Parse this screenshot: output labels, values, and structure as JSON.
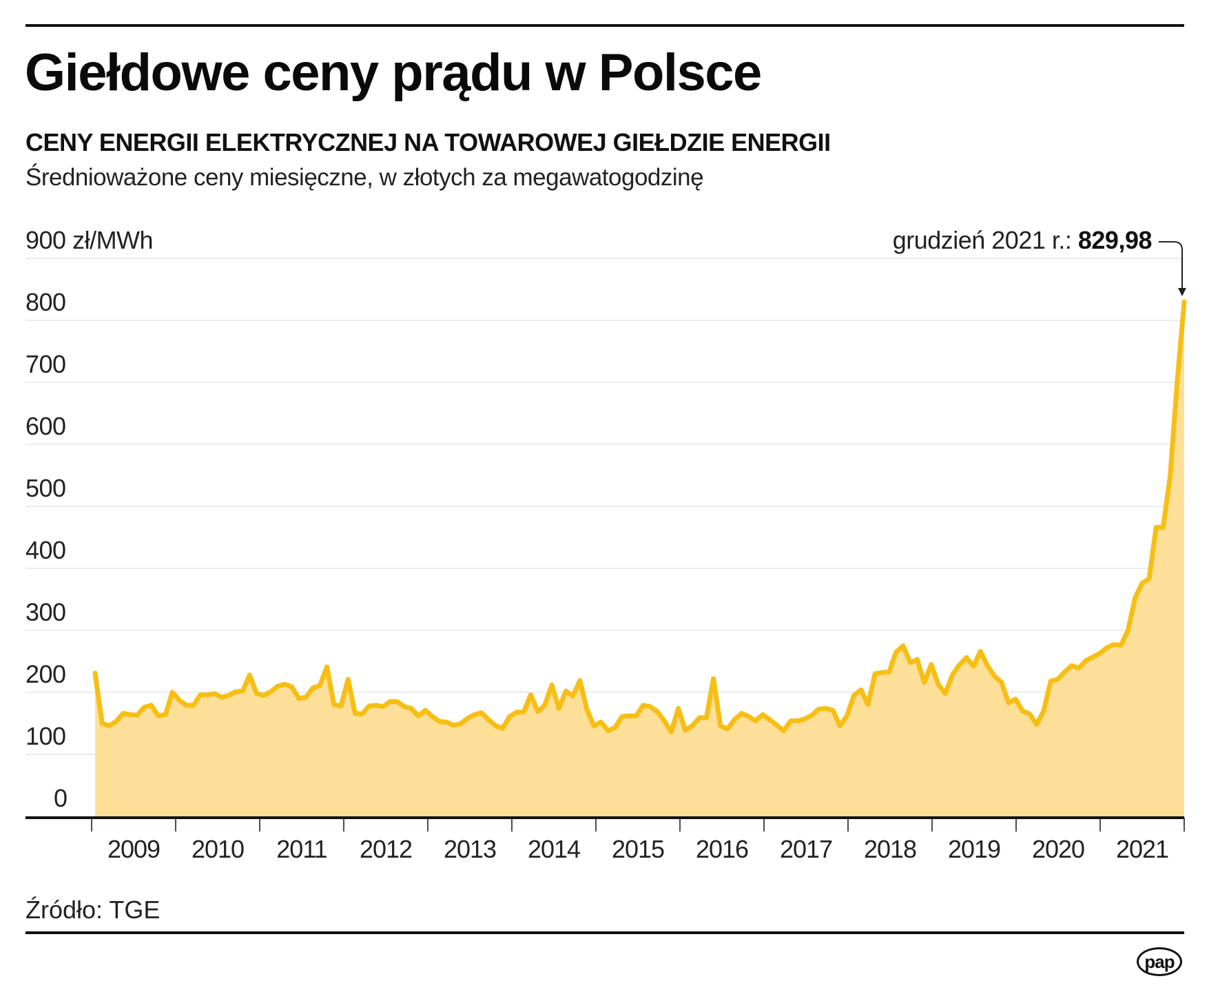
{
  "header": {
    "title": "Giełdowe ceny prądu w Polsce",
    "subtitle": "CENY ENERGII ELEKTRYCZNEJ NA TOWAROWEJ GIEŁDZIE ENERGII",
    "description": "Średnioważone ceny miesięczne, w złotych za megawatogodzinę"
  },
  "annotation": {
    "label": "grudzień 2021 r.: ",
    "value": "829,98"
  },
  "footer": {
    "source": "Źródło: TGE",
    "logo": "pap"
  },
  "colors": {
    "line": "#F7BE14",
    "area": "#FDDF97",
    "grid": "#EBEBEB",
    "axis": "#111111"
  },
  "chart_data": {
    "type": "area",
    "title": "Giełdowe ceny prądu w Polsce",
    "subtitle": "CENY ENERGII ELEKTRYCZNEJ NA TOWAROWEJ GIEŁDZIE ENERGII",
    "ylabel": "zł/MWh",
    "xlabel": "",
    "ylim": [
      0,
      900
    ],
    "yticks": [
      0,
      100,
      200,
      300,
      400,
      500,
      600,
      700,
      800,
      900
    ],
    "ytick_labels": [
      "0",
      "100",
      "200",
      "300",
      "400",
      "500",
      "600",
      "700",
      "800",
      "900 zł/MWh"
    ],
    "xtick_labels": [
      "2009",
      "2010",
      "2011",
      "2012",
      "2013",
      "2014",
      "2015",
      "2016",
      "2017",
      "2018",
      "2019",
      "2020",
      "2021"
    ],
    "grid": true,
    "annotation": {
      "text": "grudzień 2021 r.: 829,98",
      "x": "2021-12",
      "y": 829.98
    },
    "source": "Źródło: TGE",
    "series": [
      {
        "name": "Średnioważone ceny miesięczne (zł/MWh)",
        "start": "2009-01",
        "frequency": "monthly",
        "values": [
          231,
          150,
          146,
          153,
          166,
          164,
          163,
          176,
          179,
          162,
          164,
          200,
          187,
          179,
          179,
          196,
          196,
          198,
          192,
          195,
          201,
          202,
          228,
          198,
          195,
          201,
          210,
          213,
          209,
          190,
          192,
          207,
          211,
          241,
          180,
          178,
          221,
          166,
          165,
          178,
          179,
          177,
          185,
          185,
          177,
          174,
          162,
          171,
          161,
          153,
          152,
          147,
          149,
          158,
          164,
          167,
          156,
          146,
          142,
          161,
          168,
          168,
          196,
          169,
          179,
          212,
          174,
          202,
          194,
          219,
          172,
          146,
          152,
          138,
          143,
          161,
          162,
          162,
          179,
          177,
          169,
          154,
          136,
          174,
          139,
          146,
          159,
          159,
          222,
          146,
          141,
          156,
          166,
          161,
          154,
          164,
          156,
          147,
          138,
          154,
          154,
          157,
          163,
          173,
          174,
          171,
          146,
          162,
          195,
          204,
          180,
          230,
          232,
          233,
          265,
          275,
          248,
          253,
          216,
          245,
          213,
          198,
          228,
          244,
          256,
          242,
          266,
          243,
          226,
          216,
          183,
          189,
          170,
          165,
          148,
          170,
          218,
          221,
          233,
          243,
          239,
          251,
          257,
          263,
          272,
          277,
          276,
          300,
          352,
          376,
          383,
          466,
          466,
          549,
          700,
          829.98
        ]
      }
    ]
  }
}
